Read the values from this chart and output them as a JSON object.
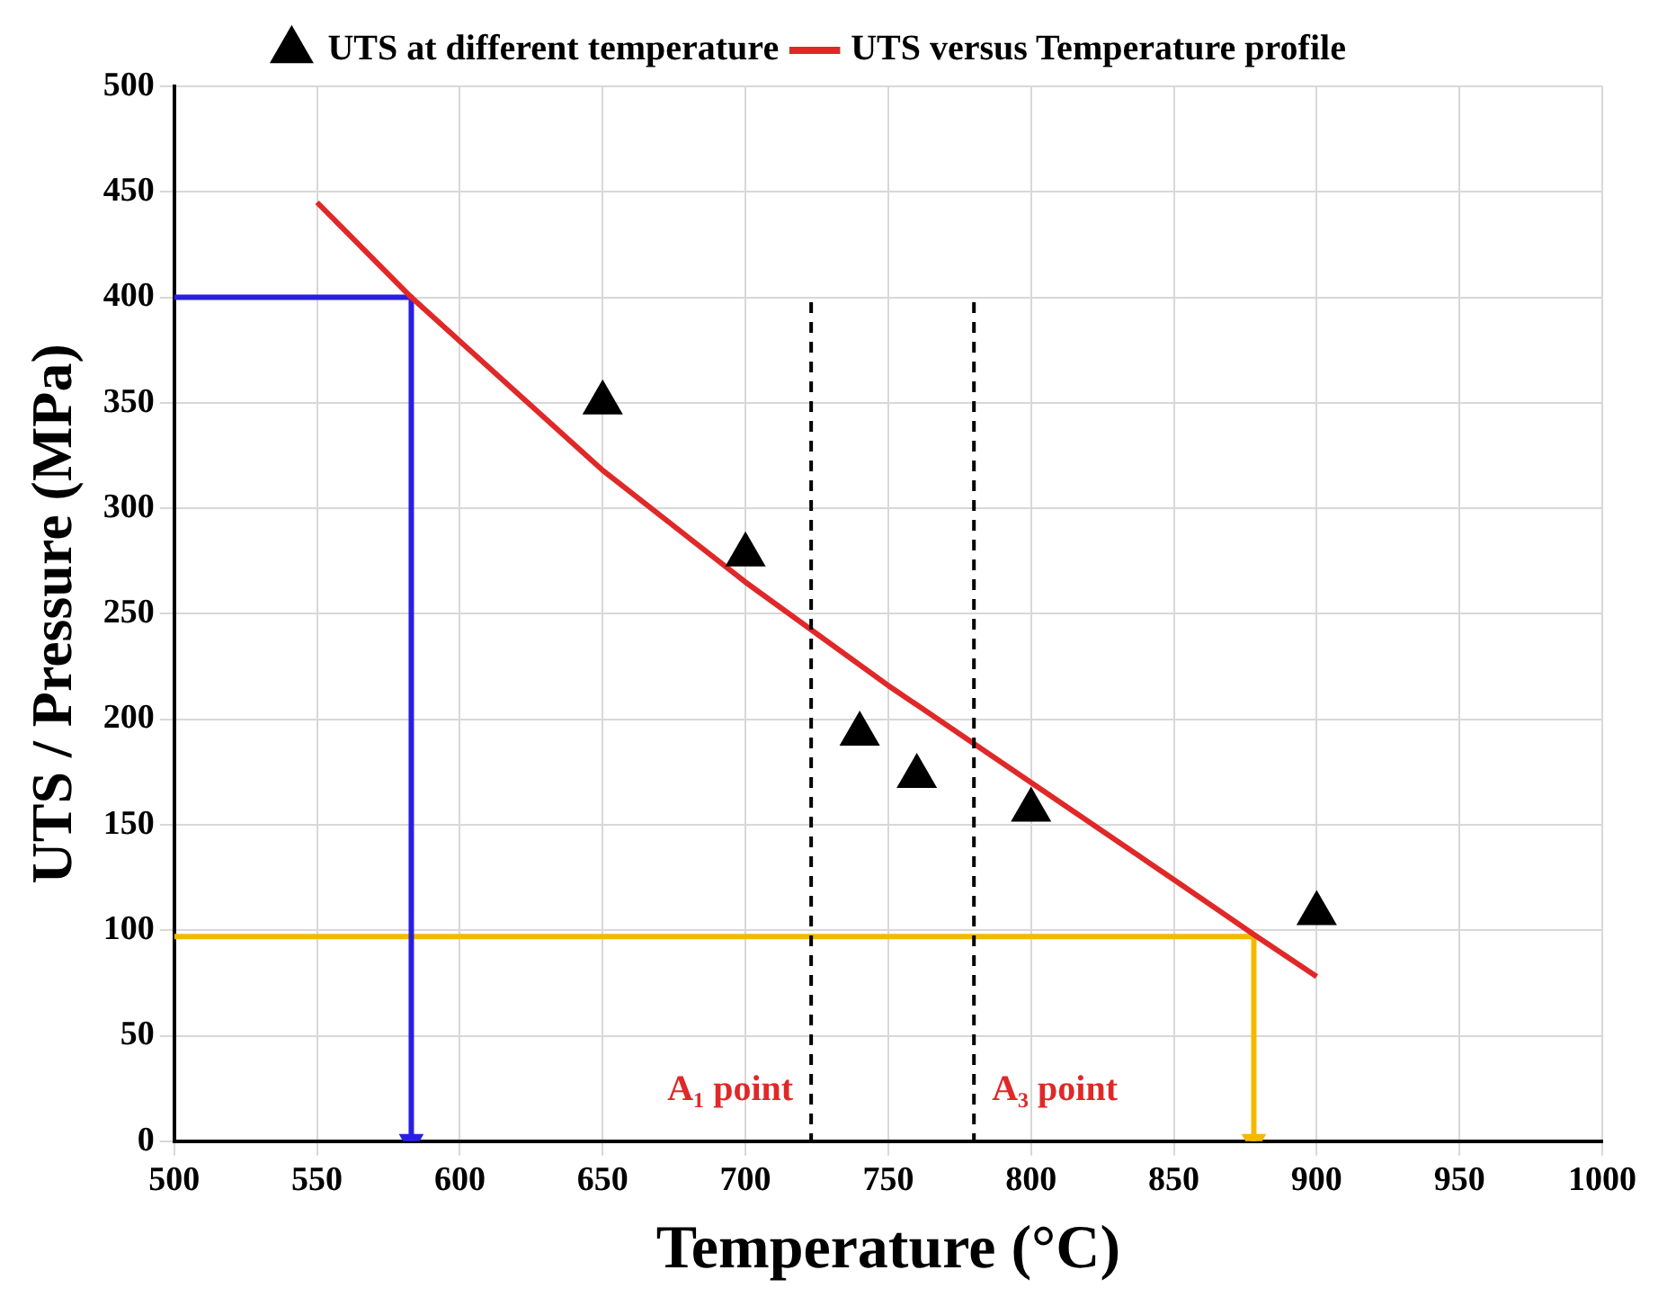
{
  "chart_data": {
    "type": "scatter",
    "xlabel": "Temperature (°C)",
    "ylabel": "UTS / Pressure (MPa)",
    "xlim": [
      500,
      1000
    ],
    "xticks": [
      500,
      550,
      600,
      650,
      700,
      750,
      800,
      850,
      900,
      950,
      1000
    ],
    "ylim": [
      0,
      500
    ],
    "yticks": [
      0,
      50,
      100,
      150,
      200,
      250,
      300,
      350,
      400,
      450,
      500
    ],
    "grid": true,
    "legend": "top",
    "series": [
      {
        "name": "UTS at different temperature",
        "type": "scatter",
        "color": "#000000",
        "marker": "triangle",
        "x": [
          650,
          700,
          740,
          760,
          800,
          900
        ],
        "values": [
          350,
          278,
          193,
          173,
          157,
          108
        ]
      },
      {
        "name": "UTS versus Temperature profile",
        "type": "line",
        "color": "#e02828",
        "marker": "none",
        "x": [
          550,
          583,
          650,
          700,
          750,
          800,
          850,
          878,
          900
        ],
        "values": [
          445,
          400,
          318,
          265,
          216,
          170,
          124,
          98,
          78
        ]
      },
      {
        "type": "line",
        "color": "#2a1fe0",
        "marker": "none",
        "x": [
          500,
          583,
          583
        ],
        "values": [
          400,
          400,
          0
        ]
      },
      {
        "type": "line",
        "color": "#f5b800",
        "marker": "none",
        "x": [
          500,
          878,
          878
        ],
        "values": [
          97,
          97,
          0
        ]
      }
    ],
    "ref_lines": [
      {
        "axis": "x",
        "value": 723,
        "label": "A₁ point",
        "color": "#000000",
        "line_style": "dashed"
      },
      {
        "axis": "x",
        "value": 780,
        "label": "A₃ point",
        "color": "#000000",
        "line_style": "dashed"
      }
    ]
  }
}
